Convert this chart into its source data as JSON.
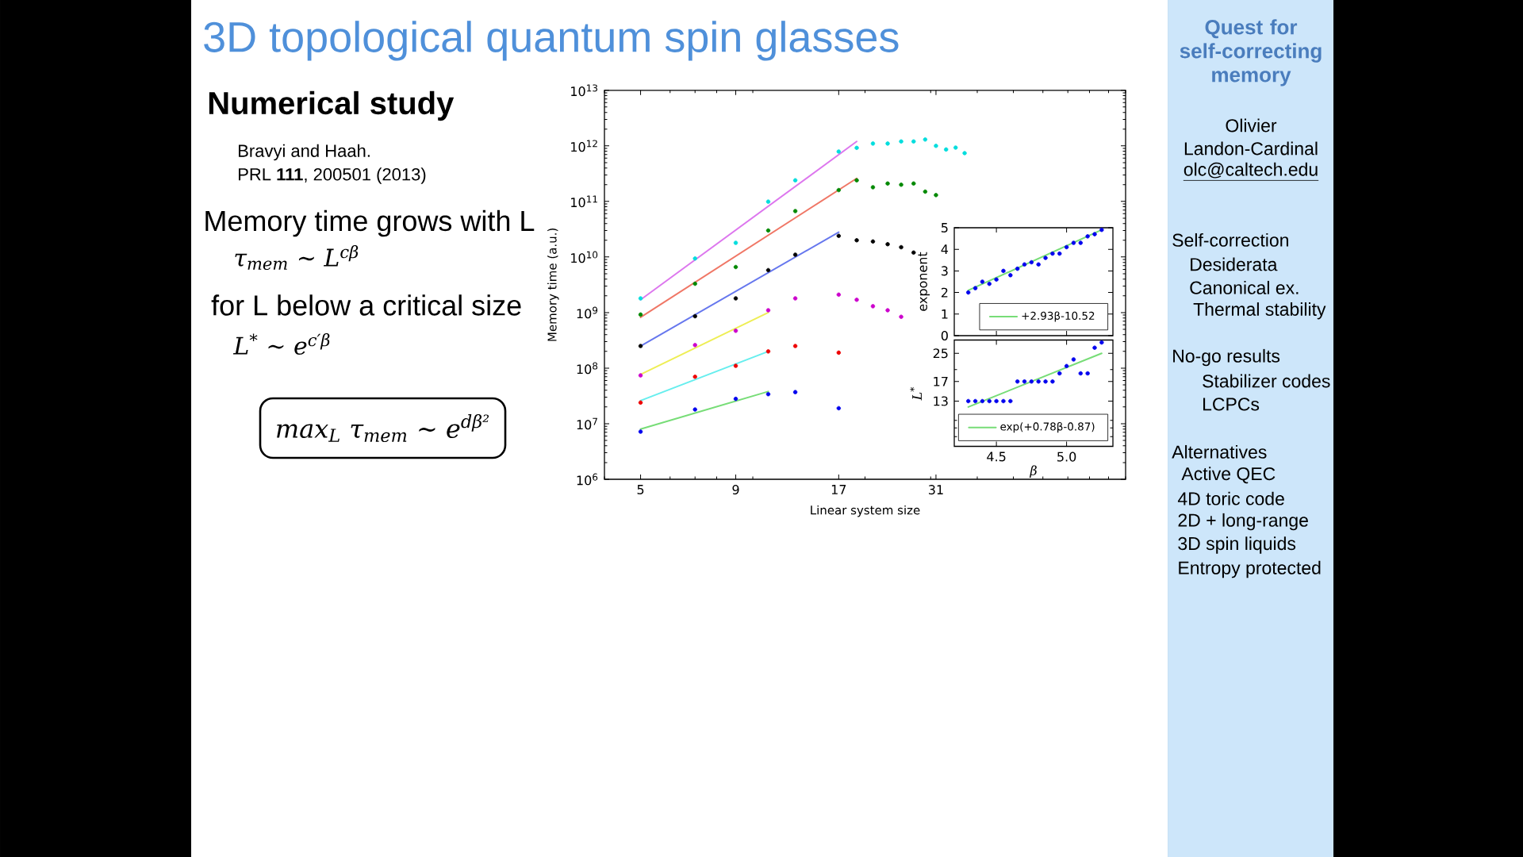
{
  "chart_data": [
    {
      "type": "scatter",
      "title": "3D topological quantum spin glasses",
      "subtitle": "Numerical study",
      "xlabel": "Linear system size",
      "ylabel": "Memory time (a.u.)",
      "log": "xy",
      "xlim": [
        4,
        100
      ],
      "ylim": [
        1000000.0,
        10000000000000.0
      ],
      "xticks": [
        5,
        9,
        17,
        31
      ],
      "yticks": [
        {
          "value": 1000000.0,
          "label": "10$^{6}$"
        },
        {
          "value": 10000000.0,
          "label": "10$^{7}$"
        },
        {
          "value": 100000000.0,
          "label": "10$^{8}$"
        },
        {
          "value": 1000000000.0,
          "label": "10$^{9}$"
        },
        {
          "value": 10000000000.0,
          "label": "10$^{10}$"
        },
        {
          "value": 100000000000.0,
          "label": "10$^{11}$"
        },
        {
          "value": 1000000000000.0,
          "label": "10$^{12}$"
        },
        {
          "value": 10000000000000.0,
          "label": "10$^{13}$"
        }
      ],
      "series": [
        {
          "type": "line",
          "color": "#dd77ee",
          "x": [
            5,
            19
          ],
          "values": [
            1700000000.0,
            1200000000000.0
          ]
        },
        {
          "type": "line",
          "color": "#f07766",
          "x": [
            5,
            19
          ],
          "values": [
            820000000.0,
            260000000000.0
          ]
        },
        {
          "type": "line",
          "color": "#6677ee",
          "x": [
            5,
            17
          ],
          "values": [
            250000000.0,
            28000000000.0
          ]
        },
        {
          "type": "line",
          "color": "#eeee55",
          "x": [
            5,
            11
          ],
          "values": [
            77000000.0,
            1000000000.0
          ]
        },
        {
          "type": "line",
          "color": "#66eeee",
          "x": [
            5,
            11
          ],
          "values": [
            26000000.0,
            200000000.0
          ]
        },
        {
          "type": "line",
          "color": "#77dd77",
          "x": [
            5,
            11
          ],
          "values": [
            8000000.0,
            38000000.0
          ]
        },
        {
          "color": "#00dddd",
          "x": [
            5,
            7,
            9,
            11,
            13,
            17,
            19,
            21,
            23,
            25,
            27,
            29,
            31,
            33,
            35,
            37
          ],
          "values": [
            1800000000.0,
            9400000000.0,
            18000000000.0,
            99000000000.0,
            240000000000.0,
            790000000000.0,
            920000000000.0,
            1100000000000.0,
            1100000000000.0,
            1200000000000.0,
            1200000000000.0,
            1300000000000.0,
            1000000000000.0,
            860000000000.0,
            930000000000.0,
            740000000000.0
          ]
        },
        {
          "color": "#008800",
          "x": [
            5,
            7,
            9,
            11,
            13,
            17,
            19,
            21,
            23,
            25,
            27,
            29,
            31
          ],
          "values": [
            920000000.0,
            3300000000.0,
            6600000000.0,
            30000000000.0,
            67000000000.0,
            160000000000.0,
            240000000000.0,
            180000000000.0,
            210000000000.0,
            200000000000.0,
            210000000000.0,
            150000000000.0,
            130000000000.0
          ]
        },
        {
          "color": "#000000",
          "x": [
            5,
            7,
            9,
            11,
            13,
            17,
            19,
            21,
            23,
            25,
            27
          ],
          "values": [
            250000000.0,
            860000000.0,
            1800000000.0,
            5800000000.0,
            11000000000.0,
            24000000000.0,
            20000000000.0,
            19000000000.0,
            17000000000.0,
            15000000000.0,
            12000000000.0
          ]
        },
        {
          "color": "#cc00cc",
          "x": [
            5,
            7,
            9,
            11,
            13,
            17,
            19,
            21,
            23,
            25
          ],
          "values": [
            74000000.0,
            260000000.0,
            470000000.0,
            1100000000.0,
            1800000000.0,
            2100000000.0,
            1700000000.0,
            1300000000.0,
            1100000000.0,
            840000000.0
          ]
        },
        {
          "color": "#ee0000",
          "x": [
            5,
            7,
            9,
            11,
            13,
            17
          ],
          "values": [
            24000000.0,
            70000000.0,
            110000000.0,
            200000000.0,
            250000000.0,
            190000000.0
          ]
        },
        {
          "color": "#0000ee",
          "x": [
            5,
            7,
            9,
            11,
            13,
            17
          ],
          "values": [
            7200000.0,
            18000000.0,
            28000000.0,
            34000000.0,
            37000000.0,
            19000000.0
          ]
        }
      ],
      "annotations": [
        "Bravyi and Haah.",
        "PRL **111**, 200501 (2013)",
        "Memory time grows with L",
        "τ$_{mem}$ ∼ L$^{cβ}$",
        "for L below a critical size",
        "L$^{*}$ ∼ e$^{c′β}$",
        "max$_{L}$ τ$_{mem}$ ∼ e$^{dβ²}$"
      ]
    },
    {
      "type": "scatter",
      "ylabel": "exponent",
      "xlim": [
        4.2,
        5.33
      ],
      "ylim": [
        0,
        5
      ],
      "xticks": [
        4.5,
        5
      ],
      "yticks": [
        0,
        1,
        2,
        3,
        4,
        5
      ],
      "tick_labels": "y",
      "legend": "bottom right",
      "series": [
        {
          "color": "#0000ee",
          "x": [
            4.3,
            4.35,
            4.4,
            4.45,
            4.5,
            4.55,
            4.6,
            4.65,
            4.7,
            4.75,
            4.8,
            4.85,
            4.9,
            4.95,
            5.0,
            5.05,
            5.1,
            5.15,
            5.2,
            5.25
          ],
          "values": [
            2.0,
            2.2,
            2.5,
            2.4,
            2.6,
            3.0,
            2.8,
            3.1,
            3.3,
            3.4,
            3.3,
            3.6,
            3.8,
            3.8,
            4.1,
            4.3,
            4.3,
            4.6,
            4.7,
            4.9
          ]
        },
        {
          "type": "line",
          "name": "+2.93β-10.52",
          "color": "#77dd77",
          "x": [
            4.3,
            5.25
          ],
          "values": [
            2.1,
            4.9
          ]
        }
      ]
    },
    {
      "type": "scatter",
      "xlabel": "β",
      "ylabel": "L$^{*}$",
      "log": "y",
      "xlim": [
        4.2,
        5.33
      ],
      "ylim": [
        7,
        30
      ],
      "xticks": [
        4.5,
        {
          "value": 5,
          "label": "5.0"
        }
      ],
      "yticks": [
        13,
        17,
        25
      ],
      "legend": "bottom right",
      "series": [
        {
          "color": "#0000ee",
          "x": [
            4.3,
            4.35,
            4.4,
            4.45,
            4.5,
            4.55,
            4.6,
            4.65,
            4.7,
            4.75,
            4.8,
            4.85,
            4.9,
            4.95,
            5.0,
            5.05,
            5.1,
            5.15,
            5.2,
            5.25
          ],
          "values": [
            13,
            13,
            13,
            13,
            13,
            13,
            13,
            17,
            17,
            17,
            17,
            17,
            17,
            19,
            21,
            23,
            19,
            19,
            27,
            29
          ]
        },
        {
          "type": "line",
          "name": "exp(+0.78β-0.87)",
          "color": "#77dd77",
          "x": [
            4.3,
            5.25
          ],
          "values": [
            12,
            25
          ]
        }
      ]
    },
    {
      "type": "other",
      "title": "Quest for self-correcting memory",
      "annotations": [
        "Olivier Landon-Cardinal",
        "olc@caltech.edu",
        "Self-correction",
        "Desiderata",
        "Canonical ex.",
        "Thermal stability",
        "No-go results",
        "Stabilizer codes",
        "LCPCs",
        "Alternatives",
        "Active QEC",
        "4D toric code",
        "2D + long-range",
        "3D spin liquids",
        "Entropy protected"
      ]
    }
  ]
}
